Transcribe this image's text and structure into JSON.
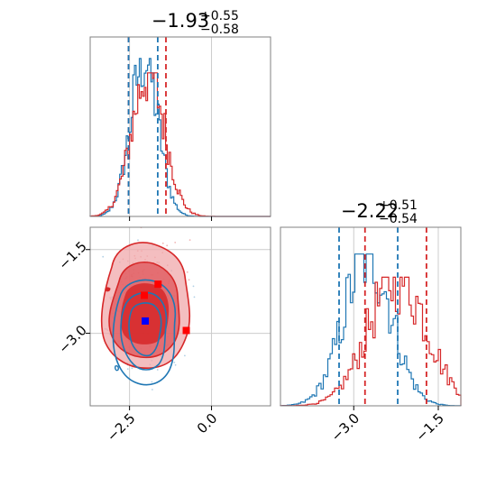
{
  "chart_data": {
    "type": "corner",
    "colors": {
      "blue": "#1f77b4",
      "red": "#d62728",
      "grid": "#cccccc",
      "frame": "#808080"
    },
    "titles": [
      {
        "panel": "marginal-1",
        "base": "−1.93",
        "plus": "+0.55",
        "minus": "−0.58"
      },
      {
        "panel": "marginal-2",
        "base": "−2.22",
        "plus": "+0.51",
        "minus": "−0.54"
      }
    ],
    "x_ticks_param1": [
      "−2.5",
      "0.0"
    ],
    "x_ticks_param2": [
      "−3.0",
      "−1.5"
    ],
    "y_ticks_param2": [
      "−1.5",
      "−3.0"
    ],
    "ranges": {
      "param1": [
        -3.7,
        1.8
      ],
      "param2": [
        -4.3,
        -1.1
      ]
    },
    "marginal_1": {
      "quantile_lines": [
        {
          "series": "red",
          "values": [
            -2.53,
            -1.39
          ]
        },
        {
          "series": "blue",
          "values": [
            -2.53,
            -1.64
          ]
        }
      ]
    },
    "marginal_2": {
      "quantile_lines": [
        {
          "series": "blue",
          "values": [
            -3.26,
            -2.22
          ]
        },
        {
          "series": "red",
          "values": [
            -2.8,
            -1.71
          ]
        }
      ]
    },
    "joint": {
      "red_points": [
        [
          -2.05,
          -2.32
        ],
        [
          -1.63,
          -2.12
        ],
        [
          -0.77,
          -2.95
        ]
      ],
      "blue_points": [
        [
          -2.02,
          -2.78
        ]
      ]
    }
  }
}
